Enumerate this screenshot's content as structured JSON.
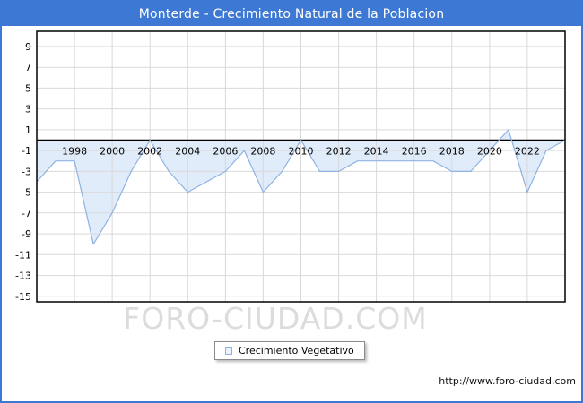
{
  "window": {
    "title": "Monterde - Crecimiento Natural de la Poblacion"
  },
  "chart_data": {
    "type": "area",
    "title": "Monterde - Crecimiento Natural de la Poblacion",
    "xlabel": "",
    "ylabel": "",
    "ylim": [
      -15,
      9
    ],
    "grid": true,
    "legend_position": "bottom-center",
    "y_ticks": [
      9,
      7,
      5,
      3,
      1,
      -1,
      -3,
      -5,
      -7,
      -9,
      -11,
      -13,
      -15
    ],
    "x_tick_labels": [
      "1998",
      "2000",
      "2002",
      "2004",
      "2006",
      "2008",
      "2010",
      "2012",
      "2014",
      "2016",
      "2018",
      "2020",
      "2022"
    ],
    "series": [
      {
        "name": "Crecimiento Vegetativo",
        "x": [
          1996,
          1997,
          1998,
          1999,
          2000,
          2001,
          2002,
          2003,
          2004,
          2005,
          2006,
          2007,
          2008,
          2009,
          2010,
          2011,
          2012,
          2013,
          2014,
          2015,
          2016,
          2017,
          2018,
          2019,
          2020,
          2021,
          2022,
          2023,
          2024
        ],
        "values": [
          -4,
          -2,
          -2,
          -10,
          -7,
          -3,
          0,
          -3,
          -5,
          -4,
          -3,
          -1,
          -5,
          -3,
          0,
          -3,
          -3,
          -2,
          -2,
          -2,
          -2,
          -2,
          -3,
          -3,
          -1,
          1,
          -5,
          -1,
          0
        ]
      }
    ]
  },
  "legend": {
    "label": "Crecimiento Vegetativo"
  },
  "watermark": "FORO-CIUDAD.COM",
  "footer": {
    "url": "http://www.foro-ciudad.com"
  },
  "colors": {
    "accent": "#3c78d4",
    "line": "#8fb2e2",
    "fill": "#ddeafa",
    "grid": "#d9d9d9",
    "axis": "#000000",
    "watermark": "#dcdcdc"
  }
}
